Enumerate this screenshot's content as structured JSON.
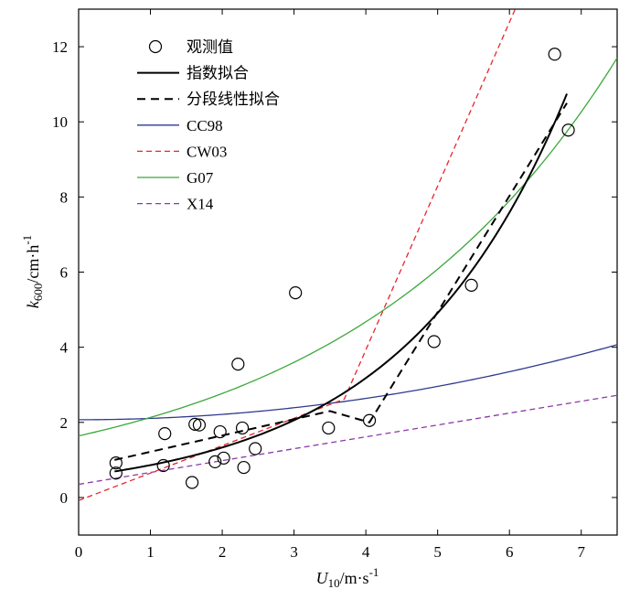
{
  "chart_data": {
    "type": "scatter",
    "title": "",
    "xlabel": {
      "var": "U",
      "sub": "10",
      "unit": "/m·s",
      "sup": "-1"
    },
    "ylabel": {
      "var": "k",
      "sub": "600",
      "unit": "/cm·h",
      "sup": "-1"
    },
    "xlim": [
      0,
      7.5
    ],
    "ylim": [
      -1,
      13
    ],
    "xticks": [
      0,
      1,
      2,
      3,
      4,
      5,
      6,
      7
    ],
    "yticks": [
      0,
      2,
      4,
      6,
      8,
      10,
      12
    ],
    "grid": false,
    "legend_position": "top-left",
    "series": [
      {
        "name": "观测值",
        "kind": "points",
        "marker": "open-circle",
        "color": "#000000",
        "points": [
          [
            0.52,
            0.92
          ],
          [
            0.52,
            0.65
          ],
          [
            1.18,
            0.85
          ],
          [
            1.2,
            1.7
          ],
          [
            1.58,
            0.4
          ],
          [
            1.62,
            1.95
          ],
          [
            1.68,
            1.93
          ],
          [
            1.9,
            0.95
          ],
          [
            1.97,
            1.75
          ],
          [
            2.02,
            1.05
          ],
          [
            2.22,
            3.55
          ],
          [
            2.28,
            1.85
          ],
          [
            2.3,
            0.8
          ],
          [
            2.46,
            1.3
          ],
          [
            3.02,
            5.45
          ],
          [
            3.48,
            1.85
          ],
          [
            4.05,
            2.05
          ],
          [
            4.95,
            4.15
          ],
          [
            5.47,
            5.65
          ],
          [
            6.63,
            11.8
          ],
          [
            6.82,
            9.78
          ]
        ]
      },
      {
        "name": "指数拟合",
        "kind": "function",
        "formula": "exp",
        "params": {
          "a": 0.558,
          "b": 0.435
        },
        "domain": [
          0.5,
          6.8
        ],
        "color": "#000000",
        "dash": "",
        "width": 2
      },
      {
        "name": "分段线性拟合",
        "kind": "polyline",
        "points": [
          [
            0.5,
            1.0
          ],
          [
            3.5,
            2.3
          ],
          [
            4.05,
            2.0
          ],
          [
            6.8,
            10.5
          ]
        ],
        "color": "#000000",
        "dash": "9,6",
        "width": 2
      },
      {
        "name": "CC98",
        "kind": "function",
        "formula": "exp",
        "params": {
          "a": 2.07,
          "b": 0.0,
          "c": 0.0355,
          "form": "quad"
        },
        "domain": [
          0,
          7.5
        ],
        "color": "#2e3a8c",
        "dash": "",
        "width": 1.3
      },
      {
        "name": "CW03",
        "kind": "polyline",
        "points": [
          [
            0,
            -0.08
          ],
          [
            3.7,
            2.62
          ],
          [
            6.08,
            13
          ]
        ],
        "color": "#e8262d",
        "dash": "6,4",
        "width": 1.3
      },
      {
        "name": "G07",
        "kind": "function",
        "formula": "exp",
        "params": {
          "a": 1.64,
          "b": 0.262
        },
        "domain": [
          0,
          7.5
        ],
        "color": "#3aa83a",
        "dash": "",
        "width": 1.3
      },
      {
        "name": "X14",
        "kind": "polyline",
        "points": [
          [
            0,
            0.35
          ],
          [
            7.5,
            2.72
          ]
        ],
        "color": "#8a3aa8",
        "dash": "6,4",
        "width": 1.3
      }
    ]
  }
}
